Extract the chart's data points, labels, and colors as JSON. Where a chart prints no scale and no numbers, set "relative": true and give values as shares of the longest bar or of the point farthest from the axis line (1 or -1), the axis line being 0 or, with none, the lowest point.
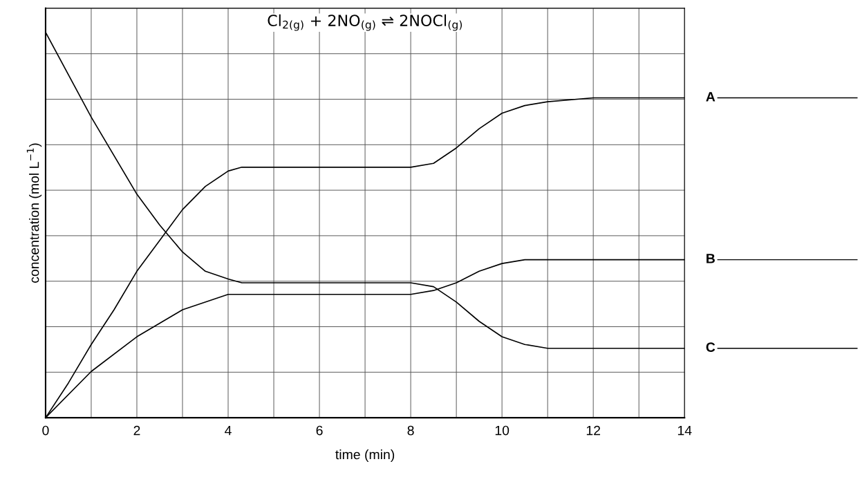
{
  "chart_data": {
    "type": "line",
    "title": "Cl$_{2(g)}$ + 2NO$_{(g)}$ ⇌ 2NOCl$_{(g)}$",
    "xlabel": "time (min)",
    "ylabel": "concentration (mol L$^{−1}$)",
    "relative": true,
    "grid": true,
    "legend": false,
    "marker": "none",
    "line_style": "solid",
    "xlim": [
      0,
      14
    ],
    "xticks": [
      0,
      {
        "value": 1,
        "label": null
      },
      2,
      {
        "value": 3,
        "label": null
      },
      4,
      {
        "value": 5,
        "label": null
      },
      6,
      {
        "value": 7,
        "label": null
      },
      8,
      {
        "value": 9,
        "label": null
      },
      10,
      {
        "value": 11,
        "label": null
      },
      12,
      {
        "value": 13,
        "label": null
      },
      14
    ],
    "series": [
      {
        "name": "A",
        "color": "#000000",
        "x": [
          0,
          0.5,
          1,
          1.5,
          2,
          2.5,
          3,
          3.5,
          4,
          4.3,
          8,
          8.5,
          9,
          9.5,
          10,
          10.5,
          11,
          12,
          14
        ],
        "values": [
          0,
          0.09,
          0.19,
          0.28,
          0.38,
          0.46,
          0.54,
          0.6,
          0.64,
          0.65,
          0.65,
          0.66,
          0.7,
          0.75,
          0.79,
          0.81,
          0.82,
          0.83,
          0.83
        ]
      },
      {
        "name": "B",
        "color": "#000000",
        "x": [
          0,
          1,
          2,
          3,
          4,
          4.3,
          8,
          8.5,
          9,
          9.5,
          10,
          10.5,
          11,
          12,
          14
        ],
        "values": [
          0,
          0.12,
          0.21,
          0.28,
          0.32,
          0.32,
          0.32,
          0.33,
          0.35,
          0.38,
          0.4,
          0.41,
          0.41,
          0.41,
          0.41
        ]
      },
      {
        "name": "C",
        "color": "#000000",
        "x": [
          0,
          1,
          2,
          2.5,
          3,
          3.5,
          4,
          4.3,
          8,
          8.5,
          9,
          9.5,
          10,
          10.5,
          11,
          12,
          14
        ],
        "values": [
          1,
          0.78,
          0.58,
          0.5,
          0.43,
          0.38,
          0.36,
          0.35,
          0.35,
          0.34,
          0.3,
          0.25,
          0.21,
          0.19,
          0.18,
          0.18,
          0.18
        ]
      }
    ]
  }
}
